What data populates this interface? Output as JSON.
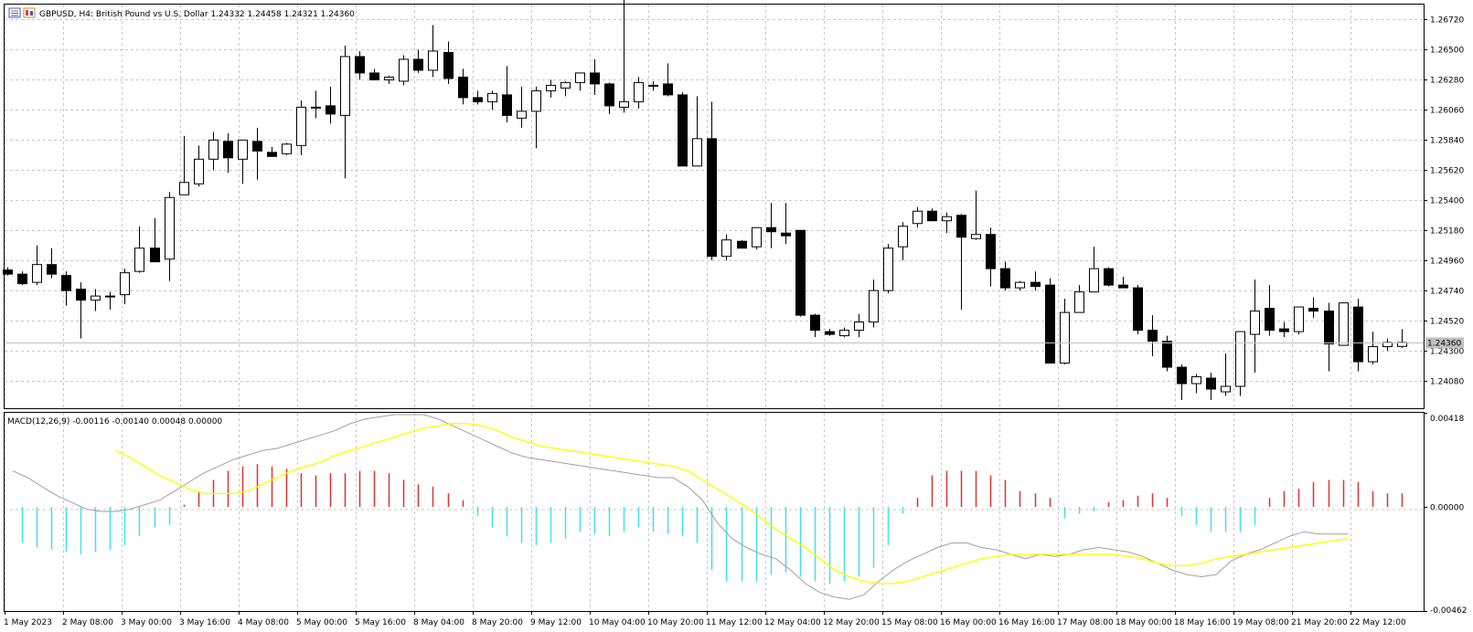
{
  "main_header": {
    "symbol_line": "GBPUSD, H4:  British Pound vs U.S. Dollar  1.24332 1.24458 1.24321 1.24360"
  },
  "macd_header": {
    "text": "MACD(12,26,9) -0.00116 -0.00140 0.00048 0.00000"
  },
  "current_price_label": "1.24360",
  "chart_data": [
    {
      "type": "candlestick",
      "title": "GBPUSD, H4",
      "price_ticks": [
        "1.26720",
        "1.26500",
        "1.26280",
        "1.26060",
        "1.25840",
        "1.25620",
        "1.25400",
        "1.25180",
        "1.24960",
        "1.24740",
        "1.24520",
        "1.24300",
        "1.24080"
      ],
      "ylim": [
        1.2388,
        1.2683
      ],
      "current_price": 1.2436,
      "grid": true,
      "candles": [
        {
          "o": 1.2489,
          "h": 1.2491,
          "l": 1.2485,
          "c": 1.2486
        },
        {
          "o": 1.2486,
          "h": 1.2488,
          "l": 1.2478,
          "c": 1.2479
        },
        {
          "o": 1.248,
          "h": 1.2507,
          "l": 1.2478,
          "c": 1.2493
        },
        {
          "o": 1.2493,
          "h": 1.2505,
          "l": 1.2483,
          "c": 1.2486
        },
        {
          "o": 1.2485,
          "h": 1.2488,
          "l": 1.2463,
          "c": 1.2474
        },
        {
          "o": 1.2475,
          "h": 1.248,
          "l": 1.2439,
          "c": 1.2467
        },
        {
          "o": 1.2467,
          "h": 1.2475,
          "l": 1.2459,
          "c": 1.247
        },
        {
          "o": 1.247,
          "h": 1.2473,
          "l": 1.246,
          "c": 1.247
        },
        {
          "o": 1.2471,
          "h": 1.249,
          "l": 1.2464,
          "c": 1.2487
        },
        {
          "o": 1.2488,
          "h": 1.2521,
          "l": 1.2487,
          "c": 1.2505
        },
        {
          "o": 1.2505,
          "h": 1.2527,
          "l": 1.2495,
          "c": 1.2495
        },
        {
          "o": 1.2497,
          "h": 1.2546,
          "l": 1.2481,
          "c": 1.2542
        },
        {
          "o": 1.2544,
          "h": 1.2587,
          "l": 1.2544,
          "c": 1.2553
        },
        {
          "o": 1.2552,
          "h": 1.258,
          "l": 1.255,
          "c": 1.257
        },
        {
          "o": 1.257,
          "h": 1.259,
          "l": 1.2562,
          "c": 1.2584
        },
        {
          "o": 1.2583,
          "h": 1.2589,
          "l": 1.256,
          "c": 1.2571
        },
        {
          "o": 1.257,
          "h": 1.2584,
          "l": 1.2552,
          "c": 1.2584
        },
        {
          "o": 1.2583,
          "h": 1.2593,
          "l": 1.2555,
          "c": 1.2576
        },
        {
          "o": 1.2575,
          "h": 1.2579,
          "l": 1.2572,
          "c": 1.2572
        },
        {
          "o": 1.2574,
          "h": 1.2582,
          "l": 1.2573,
          "c": 1.2581
        },
        {
          "o": 1.258,
          "h": 1.2613,
          "l": 1.2573,
          "c": 1.2608
        },
        {
          "o": 1.2608,
          "h": 1.262,
          "l": 1.26,
          "c": 1.2608
        },
        {
          "o": 1.2609,
          "h": 1.2623,
          "l": 1.2596,
          "c": 1.2603
        },
        {
          "o": 1.2602,
          "h": 1.2653,
          "l": 1.2556,
          "c": 1.2645
        },
        {
          "o": 1.2645,
          "h": 1.2649,
          "l": 1.2628,
          "c": 1.2633
        },
        {
          "o": 1.2633,
          "h": 1.2636,
          "l": 1.2628,
          "c": 1.2628
        },
        {
          "o": 1.2628,
          "h": 1.2631,
          "l": 1.2625,
          "c": 1.263
        },
        {
          "o": 1.2627,
          "h": 1.2646,
          "l": 1.2624,
          "c": 1.2643
        },
        {
          "o": 1.2643,
          "h": 1.265,
          "l": 1.2633,
          "c": 1.2635
        },
        {
          "o": 1.2635,
          "h": 1.2668,
          "l": 1.263,
          "c": 1.2649
        },
        {
          "o": 1.2648,
          "h": 1.2656,
          "l": 1.2625,
          "c": 1.2629
        },
        {
          "o": 1.263,
          "h": 1.2636,
          "l": 1.261,
          "c": 1.2615
        },
        {
          "o": 1.2615,
          "h": 1.262,
          "l": 1.261,
          "c": 1.2612
        },
        {
          "o": 1.2612,
          "h": 1.262,
          "l": 1.2606,
          "c": 1.2618
        },
        {
          "o": 1.2617,
          "h": 1.2638,
          "l": 1.2597,
          "c": 1.2602
        },
        {
          "o": 1.26,
          "h": 1.2623,
          "l": 1.2593,
          "c": 1.2605
        },
        {
          "o": 1.2605,
          "h": 1.2623,
          "l": 1.2578,
          "c": 1.262
        },
        {
          "o": 1.262,
          "h": 1.2628,
          "l": 1.2615,
          "c": 1.2624
        },
        {
          "o": 1.2622,
          "h": 1.2627,
          "l": 1.2616,
          "c": 1.2626
        },
        {
          "o": 1.2626,
          "h": 1.2633,
          "l": 1.262,
          "c": 1.2633
        },
        {
          "o": 1.2633,
          "h": 1.2643,
          "l": 1.2617,
          "c": 1.2625
        },
        {
          "o": 1.2625,
          "h": 1.2626,
          "l": 1.2603,
          "c": 1.2609
        },
        {
          "o": 1.2608,
          "h": 1.2687,
          "l": 1.2604,
          "c": 1.2612
        },
        {
          "o": 1.2612,
          "h": 1.263,
          "l": 1.2607,
          "c": 1.2626
        },
        {
          "o": 1.2624,
          "h": 1.2627,
          "l": 1.262,
          "c": 1.2624
        },
        {
          "o": 1.2625,
          "h": 1.264,
          "l": 1.2616,
          "c": 1.2617
        },
        {
          "o": 1.2617,
          "h": 1.2619,
          "l": 1.2565,
          "c": 1.2565
        },
        {
          "o": 1.2565,
          "h": 1.2616,
          "l": 1.2565,
          "c": 1.2585
        },
        {
          "o": 1.2585,
          "h": 1.2612,
          "l": 1.2496,
          "c": 1.2499
        },
        {
          "o": 1.2499,
          "h": 1.2515,
          "l": 1.2496,
          "c": 1.2511
        },
        {
          "o": 1.251,
          "h": 1.2511,
          "l": 1.2505,
          "c": 1.2505
        },
        {
          "o": 1.2506,
          "h": 1.252,
          "l": 1.2504,
          "c": 1.252
        },
        {
          "o": 1.252,
          "h": 1.2538,
          "l": 1.2505,
          "c": 1.2517
        },
        {
          "o": 1.2516,
          "h": 1.2538,
          "l": 1.2508,
          "c": 1.2514
        },
        {
          "o": 1.2518,
          "h": 1.2518,
          "l": 1.2455,
          "c": 1.2456
        },
        {
          "o": 1.2456,
          "h": 1.2457,
          "l": 1.244,
          "c": 1.2445
        },
        {
          "o": 1.2444,
          "h": 1.2446,
          "l": 1.2441,
          "c": 1.2442
        },
        {
          "o": 1.2441,
          "h": 1.2447,
          "l": 1.244,
          "c": 1.2445
        },
        {
          "o": 1.2445,
          "h": 1.2457,
          "l": 1.244,
          "c": 1.2451
        },
        {
          "o": 1.2451,
          "h": 1.2482,
          "l": 1.2447,
          "c": 1.2474
        },
        {
          "o": 1.2474,
          "h": 1.2508,
          "l": 1.2472,
          "c": 1.2505
        },
        {
          "o": 1.2506,
          "h": 1.2524,
          "l": 1.2496,
          "c": 1.2521
        },
        {
          "o": 1.2523,
          "h": 1.2535,
          "l": 1.252,
          "c": 1.2532
        },
        {
          "o": 1.2532,
          "h": 1.2534,
          "l": 1.2525,
          "c": 1.2525
        },
        {
          "o": 1.2525,
          "h": 1.2531,
          "l": 1.2516,
          "c": 1.2528
        },
        {
          "o": 1.2529,
          "h": 1.253,
          "l": 1.246,
          "c": 1.2513
        },
        {
          "o": 1.2512,
          "h": 1.2547,
          "l": 1.2511,
          "c": 1.2515
        },
        {
          "o": 1.2515,
          "h": 1.252,
          "l": 1.2477,
          "c": 1.249
        },
        {
          "o": 1.249,
          "h": 1.2495,
          "l": 1.2474,
          "c": 1.2476
        },
        {
          "o": 1.2476,
          "h": 1.2481,
          "l": 1.2474,
          "c": 1.248
        },
        {
          "o": 1.248,
          "h": 1.2488,
          "l": 1.2474,
          "c": 1.2477
        },
        {
          "o": 1.2478,
          "h": 1.2483,
          "l": 1.2421,
          "c": 1.2421
        },
        {
          "o": 1.2421,
          "h": 1.2468,
          "l": 1.242,
          "c": 1.2458
        },
        {
          "o": 1.2458,
          "h": 1.2478,
          "l": 1.2458,
          "c": 1.2473
        },
        {
          "o": 1.2473,
          "h": 1.2506,
          "l": 1.2473,
          "c": 1.249
        },
        {
          "o": 1.249,
          "h": 1.2491,
          "l": 1.2477,
          "c": 1.2478
        },
        {
          "o": 1.2478,
          "h": 1.2484,
          "l": 1.2476,
          "c": 1.2476
        },
        {
          "o": 1.2476,
          "h": 1.2478,
          "l": 1.2442,
          "c": 1.2445
        },
        {
          "o": 1.2445,
          "h": 1.2456,
          "l": 1.2426,
          "c": 1.2437
        },
        {
          "o": 1.2437,
          "h": 1.2441,
          "l": 1.2415,
          "c": 1.2418
        },
        {
          "o": 1.2418,
          "h": 1.242,
          "l": 1.2394,
          "c": 1.2406
        },
        {
          "o": 1.2406,
          "h": 1.2413,
          "l": 1.2399,
          "c": 1.2411
        },
        {
          "o": 1.241,
          "h": 1.2414,
          "l": 1.2394,
          "c": 1.2402
        },
        {
          "o": 1.24,
          "h": 1.2428,
          "l": 1.2397,
          "c": 1.2404
        },
        {
          "o": 1.2404,
          "h": 1.2444,
          "l": 1.2397,
          "c": 1.2444
        },
        {
          "o": 1.2442,
          "h": 1.2482,
          "l": 1.2414,
          "c": 1.2459
        },
        {
          "o": 1.2461,
          "h": 1.2478,
          "l": 1.2441,
          "c": 1.2445
        },
        {
          "o": 1.2446,
          "h": 1.2451,
          "l": 1.244,
          "c": 1.2444
        },
        {
          "o": 1.2444,
          "h": 1.2462,
          "l": 1.2442,
          "c": 1.2462
        },
        {
          "o": 1.2461,
          "h": 1.2469,
          "l": 1.2454,
          "c": 1.2459
        },
        {
          "o": 1.2459,
          "h": 1.2465,
          "l": 1.2415,
          "c": 1.2435
        },
        {
          "o": 1.2434,
          "h": 1.2465,
          "l": 1.2434,
          "c": 1.2465
        },
        {
          "o": 1.2462,
          "h": 1.2468,
          "l": 1.2415,
          "c": 1.2422
        },
        {
          "o": 1.2422,
          "h": 1.2444,
          "l": 1.242,
          "c": 1.2433
        },
        {
          "o": 1.2433,
          "h": 1.2439,
          "l": 1.243,
          "c": 1.2436
        },
        {
          "o": 1.24332,
          "h": 1.24458,
          "l": 1.24321,
          "c": 1.2436
        }
      ]
    },
    {
      "type": "macd",
      "title": "MACD(12,26,9)",
      "value_ticks": [
        "0.00418",
        "0.00000",
        "-0.00462"
      ],
      "ylim": [
        -0.00462,
        0.00418
      ],
      "histogram": [
        -0.0016,
        -0.0018,
        -0.0019,
        -0.002,
        -0.0021,
        -0.002,
        -0.0019,
        -0.0017,
        -0.0013,
        -0.0009,
        -0.0008,
        0.0001,
        0.0007,
        0.0012,
        0.0016,
        0.0018,
        0.0019,
        0.0018,
        0.0017,
        0.0015,
        0.0014,
        0.0015,
        0.0015,
        0.0016,
        0.0016,
        0.0015,
        0.0012,
        0.001,
        0.0009,
        0.0006,
        0.0003,
        -0.0004,
        -0.0009,
        -0.0013,
        -0.0016,
        -0.0017,
        -0.0016,
        -0.0014,
        -0.0011,
        -0.0012,
        -0.0013,
        -0.0011,
        -0.0009,
        -0.0011,
        -0.0012,
        -0.0013,
        -0.0016,
        -0.0028,
        -0.0033,
        -0.0033,
        -0.0033,
        -0.003,
        -0.0029,
        -0.0031,
        -0.0033,
        -0.0034,
        -0.0033,
        -0.0031,
        -0.0027,
        -0.0017,
        -0.0003,
        0.0004,
        0.0014,
        0.0016,
        0.0016,
        0.0016,
        0.0014,
        0.0012,
        0.0007,
        0.0006,
        0.0004,
        -0.0005,
        -0.0003,
        -0.0002,
        0.0002,
        0.0003,
        0.0005,
        0.0006,
        0.0004,
        -0.0004,
        -0.0008,
        -0.0011,
        -0.0011,
        -0.0011,
        -0.0008,
        0.0004,
        0.0007,
        0.0008,
        0.0011,
        0.0012,
        0.0012,
        0.0011,
        0.0007,
        0.0006,
        0.0006
      ],
      "macd_line": [
        0.0016,
        0.0013,
        0.0009,
        0.0005,
        0.0002,
        -0.0001,
        -0.0002,
        -0.0002,
        -0.0001,
        0.0001,
        0.0003,
        0.0007,
        0.0011,
        0.0015,
        0.0018,
        0.0021,
        0.0023,
        0.0025,
        0.0026,
        0.0028,
        0.003,
        0.0032,
        0.0034,
        0.0037,
        0.0039,
        0.004,
        0.0041,
        0.0041,
        0.0041,
        0.0039,
        0.0036,
        0.0033,
        0.003,
        0.0027,
        0.0024,
        0.0022,
        0.0021,
        0.002,
        0.0019,
        0.0018,
        0.0017,
        0.0016,
        0.0015,
        0.0014,
        0.0013,
        0.0013,
        0.0009,
        0.0003,
        -0.0007,
        -0.0014,
        -0.0018,
        -0.0021,
        -0.0023,
        -0.0028,
        -0.0034,
        -0.0038,
        -0.004,
        -0.0041,
        -0.0039,
        -0.0033,
        -0.0028,
        -0.0024,
        -0.0021,
        -0.0018,
        -0.0016,
        -0.0016,
        -0.0018,
        -0.0019,
        -0.0021,
        -0.0023,
        -0.0021,
        -0.0022,
        -0.0021,
        -0.0019,
        -0.0018,
        -0.0019,
        -0.002,
        -0.0022,
        -0.0025,
        -0.0028,
        -0.003,
        -0.0031,
        -0.003,
        -0.0024,
        -0.0021,
        -0.0019,
        -0.0016,
        -0.0013,
        -0.0011,
        -0.0012,
        -0.0012,
        -0.0012
      ],
      "signal_line": [
        0.0025,
        0.0022,
        0.0018,
        0.0014,
        0.0011,
        0.0008,
        0.0006,
        0.0006,
        0.0006,
        0.0007,
        0.001,
        0.0013,
        0.0016,
        0.0018,
        0.002,
        0.0023,
        0.0025,
        0.0027,
        0.0029,
        0.0031,
        0.0033,
        0.0035,
        0.0036,
        0.0037,
        0.0037,
        0.0036,
        0.0034,
        0.0031,
        0.0029,
        0.0027,
        0.0026,
        0.0025,
        0.0024,
        0.0023,
        0.0022,
        0.0021,
        0.002,
        0.0019,
        0.0018,
        0.0016,
        0.0012,
        0.0008,
        0.0004,
        0.0,
        -0.0005,
        -0.001,
        -0.0014,
        -0.0018,
        -0.0023,
        -0.0028,
        -0.0031,
        -0.0033,
        -0.0034,
        -0.0034,
        -0.0033,
        -0.0031,
        -0.0029,
        -0.0027,
        -0.0025,
        -0.0023,
        -0.0022,
        -0.0021,
        -0.0021,
        -0.0021,
        -0.0021,
        -0.0021,
        -0.0021,
        -0.0021,
        -0.0021,
        -0.0022,
        -0.0023,
        -0.0025,
        -0.0026,
        -0.0026,
        -0.0025,
        -0.0023,
        -0.0022,
        -0.0021,
        -0.002,
        -0.0019,
        -0.0018,
        -0.0017,
        -0.0016,
        -0.0015,
        -0.0014
      ]
    }
  ],
  "time_labels": [
    "1 May 2023",
    "2 May 08:00",
    "3 May 00:00",
    "3 May 16:00",
    "4 May 08:00",
    "5 May 00:00",
    "5 May 16:00",
    "8 May 04:00",
    "8 May 20:00",
    "9 May 12:00",
    "10 May 04:00",
    "10 May 20:00",
    "11 May 12:00",
    "12 May 04:00",
    "12 May 20:00",
    "15 May 08:00",
    "16 May 00:00",
    "16 May 16:00",
    "17 May 08:00",
    "18 May 00:00",
    "18 May 16:00",
    "19 May 08:00",
    "21 May 20:00",
    "22 May 12:00"
  ],
  "colors": {
    "bull_body": "#ffffff",
    "bear_body": "#000000",
    "grid": "#c8c8c8",
    "hist_pos": "#e03030",
    "hist_neg": "#40e0f0",
    "macd_line": "#a0a0a0",
    "signal_line": "#ffff00"
  }
}
